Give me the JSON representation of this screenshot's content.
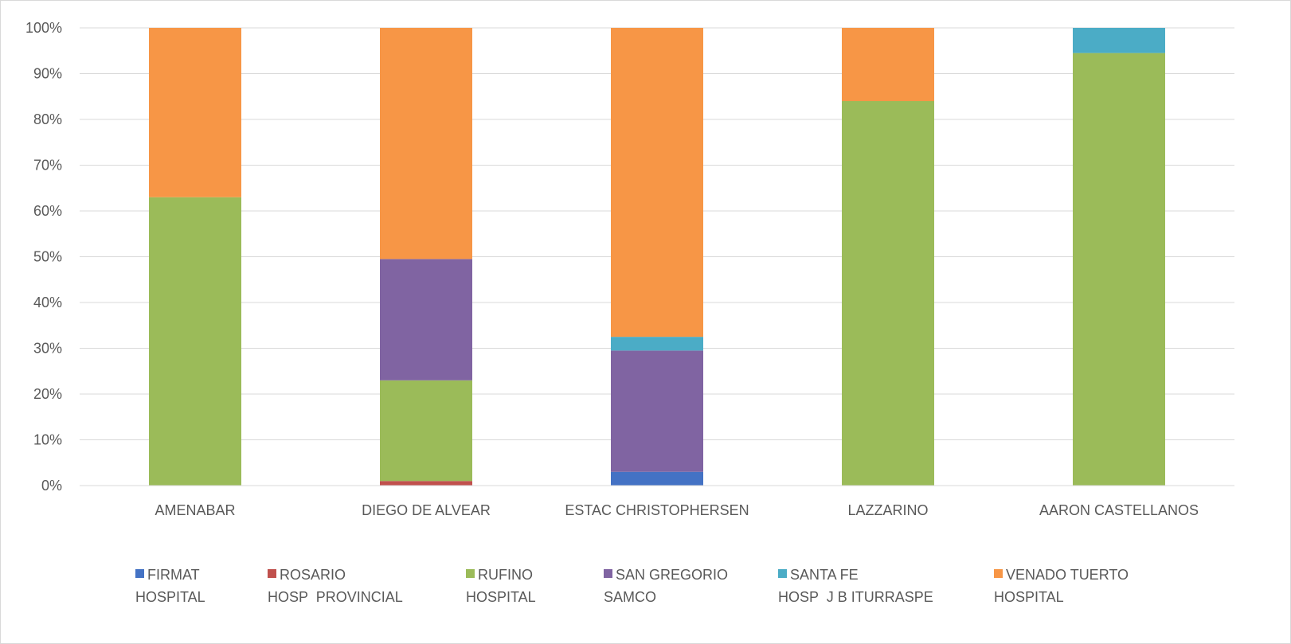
{
  "chart_data": {
    "type": "bar",
    "stacked": true,
    "percent_stacked": true,
    "categories": [
      "AMENABAR",
      "DIEGO DE ALVEAR",
      "ESTAC CHRISTOPHERSEN",
      "LAZZARINO",
      "AARON CASTELLANOS"
    ],
    "series": [
      {
        "name": [
          "FIRMAT",
          "HOSPITAL"
        ],
        "color": "#4472c4",
        "values": [
          0,
          0,
          3,
          0,
          0
        ]
      },
      {
        "name": [
          "ROSARIO",
          "HOSP  PROVINCIAL"
        ],
        "color": "#c0504d",
        "values": [
          0,
          1,
          0,
          0,
          0
        ]
      },
      {
        "name": [
          "RUFINO",
          "HOSPITAL"
        ],
        "color": "#9bbb59",
        "values": [
          63,
          22,
          0,
          84,
          94.5
        ]
      },
      {
        "name": [
          "SAN GREGORIO",
          "SAMCO"
        ],
        "color": "#8064a2",
        "values": [
          0,
          26.5,
          26.5,
          0,
          0
        ]
      },
      {
        "name": [
          "SANTA FE",
          "HOSP  J B ITURRASPE"
        ],
        "color": "#4bacc6",
        "values": [
          0,
          0,
          3,
          0,
          5.5
        ]
      },
      {
        "name": [
          "VENADO TUERTO",
          "HOSPITAL"
        ],
        "color": "#f79646",
        "values": [
          37,
          50.5,
          67.5,
          16,
          0
        ]
      }
    ],
    "y_ticks": [
      "0%",
      "10%",
      "20%",
      "30%",
      "40%",
      "50%",
      "60%",
      "70%",
      "80%",
      "90%",
      "100%"
    ],
    "ylim": [
      0,
      100
    ],
    "grid": true,
    "legend_position": "bottom",
    "title": "",
    "xlabel": "",
    "ylabel": ""
  }
}
